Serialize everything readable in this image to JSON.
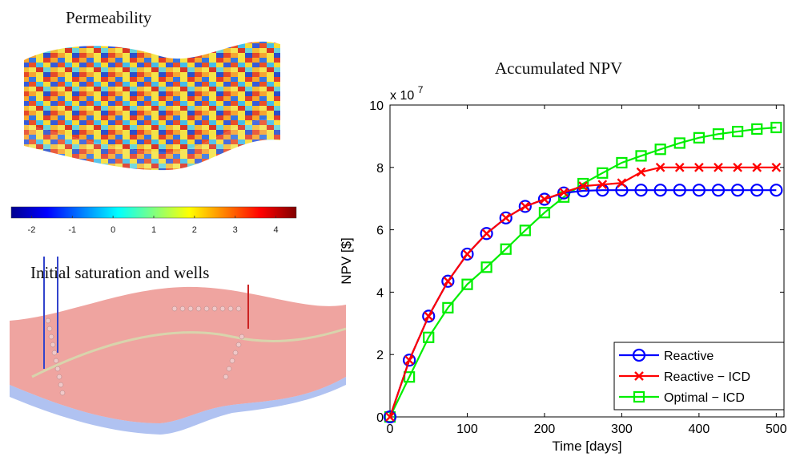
{
  "left_panel": {
    "permeability_title": "Permeability",
    "saturation_title": "Initial saturation and wells",
    "colorbar": {
      "ticks": [
        "-2",
        "-1",
        "0",
        "1",
        "2",
        "3",
        "4"
      ],
      "min": -2.5,
      "max": 4.5,
      "colormap": "jet"
    }
  },
  "chart_data": {
    "type": "line",
    "title": "Accumulated NPV",
    "xlabel": "Time [days]",
    "ylabel": "NPV [$]",
    "y_multiplier": "x 10",
    "y_multiplier_exp": "7",
    "xlim": [
      0,
      510
    ],
    "ylim": [
      0,
      10
    ],
    "x_ticks": [
      0,
      100,
      200,
      300,
      400,
      500
    ],
    "y_ticks": [
      0,
      2,
      4,
      6,
      8,
      10
    ],
    "grid": false,
    "legend_position": "bottom-right",
    "x": [
      0,
      25,
      50,
      75,
      100,
      125,
      150,
      175,
      200,
      225,
      250,
      275,
      300,
      325,
      350,
      375,
      400,
      425,
      450,
      475,
      500
    ],
    "series": [
      {
        "name": "Reactive",
        "color": "#0000ff",
        "marker": "circle",
        "values": [
          0,
          1.82,
          3.23,
          4.35,
          5.22,
          5.88,
          6.38,
          6.75,
          6.98,
          7.18,
          7.25,
          7.27,
          7.27,
          7.27,
          7.27,
          7.27,
          7.27,
          7.27,
          7.27,
          7.27,
          7.27
        ]
      },
      {
        "name": "Reactive − ICD",
        "color": "#ff0000",
        "marker": "x",
        "values": [
          0,
          1.82,
          3.23,
          4.35,
          5.22,
          5.88,
          6.38,
          6.75,
          6.98,
          7.2,
          7.4,
          7.45,
          7.5,
          7.85,
          8.0,
          8.0,
          8.0,
          8.0,
          8.0,
          8.0,
          8.0
        ]
      },
      {
        "name": "Optimal − ICD",
        "color": "#00ee00",
        "marker": "square",
        "values": [
          0,
          1.28,
          2.55,
          3.5,
          4.25,
          4.8,
          5.38,
          5.98,
          6.55,
          7.05,
          7.48,
          7.82,
          8.15,
          8.37,
          8.58,
          8.78,
          8.95,
          9.07,
          9.15,
          9.23,
          9.28
        ]
      }
    ]
  }
}
